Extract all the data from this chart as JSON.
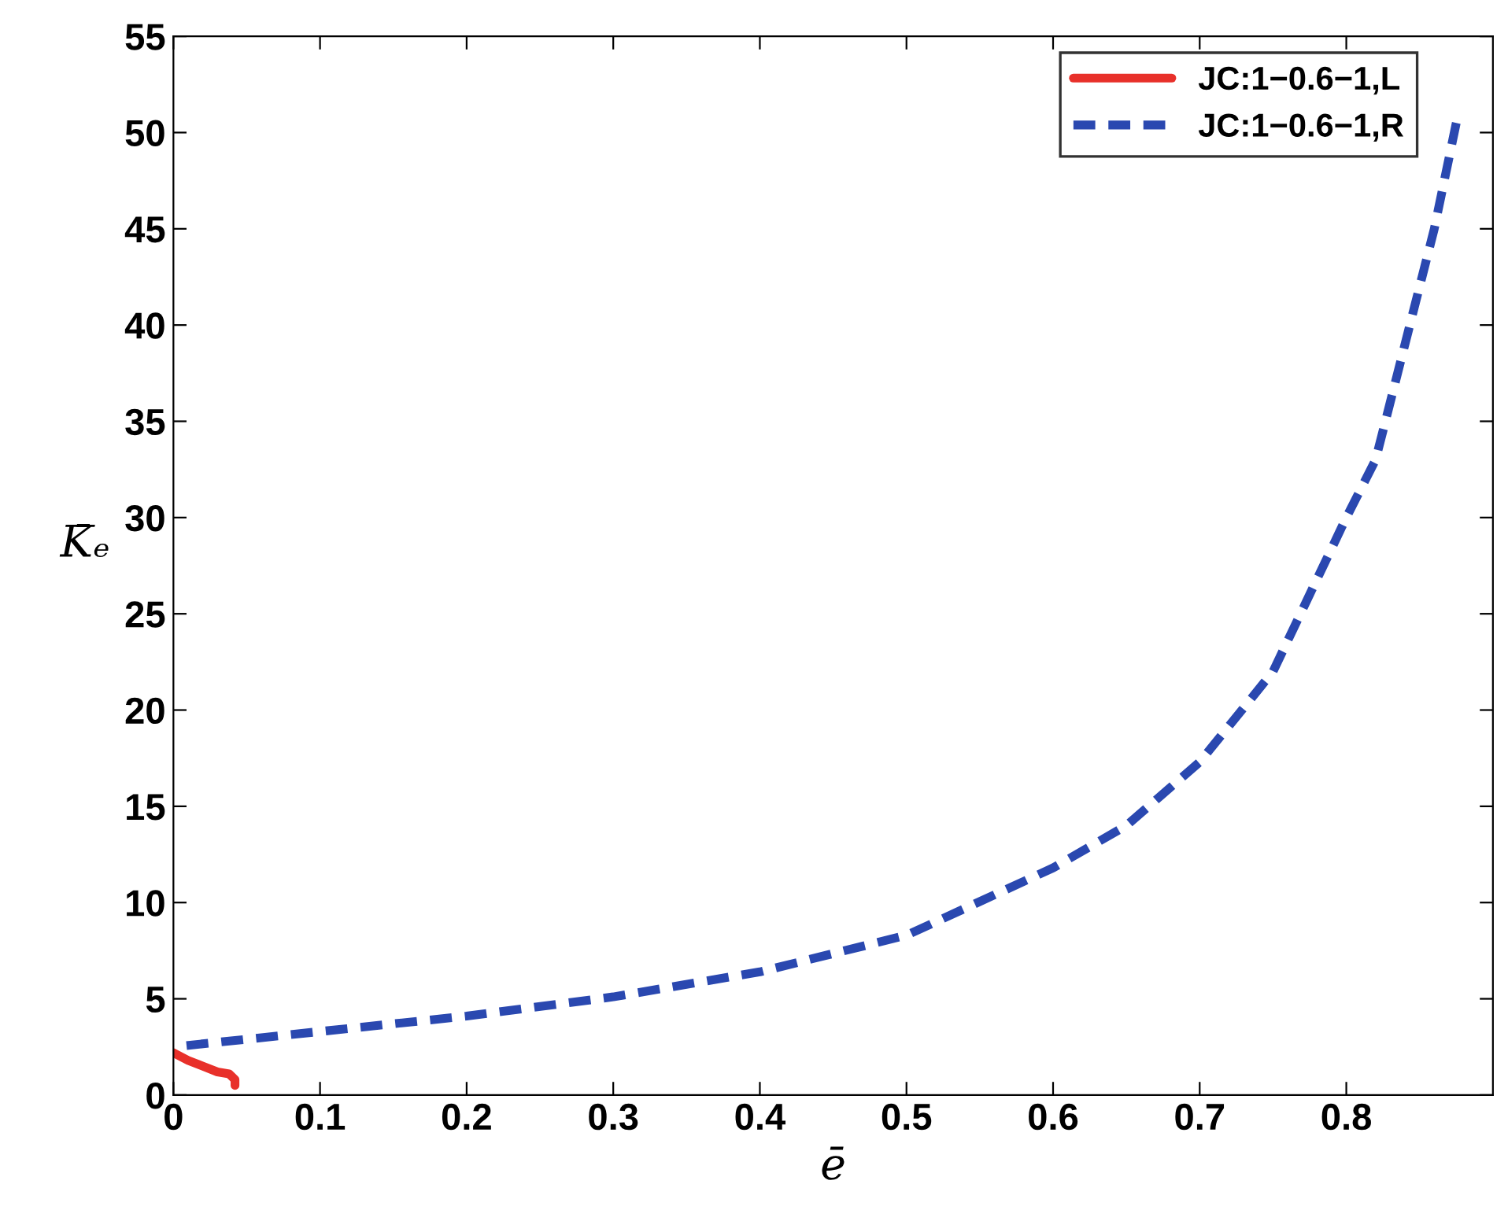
{
  "chart_data": {
    "type": "line",
    "xlabel": "ē",
    "ylabel": "K̄ₑ",
    "xlim": [
      0,
      0.9
    ],
    "ylim": [
      0,
      55
    ],
    "xticks": [
      0,
      0.1,
      0.2,
      0.3,
      0.4,
      0.5,
      0.6,
      0.7,
      0.8
    ],
    "yticks": [
      0,
      5,
      10,
      15,
      20,
      25,
      30,
      35,
      40,
      45,
      50,
      55
    ],
    "grid": false,
    "legend": "top right",
    "series": [
      {
        "name": "JC:1−0.6−1,L",
        "color": "#e8302a",
        "line_style": "solid",
        "x": [
          0,
          0.01,
          0.02,
          0.03,
          0.038,
          0.042,
          0.042
        ],
        "values": [
          2.2,
          1.8,
          1.5,
          1.2,
          1.1,
          0.8,
          0.5
        ]
      },
      {
        "name": "JC:1−0.6−1,R",
        "color": "#2a48b0",
        "line_style": "dashed",
        "x": [
          0,
          0.1,
          0.2,
          0.3,
          0.4,
          0.5,
          0.6,
          0.65,
          0.7,
          0.75,
          0.8,
          0.82,
          0.84,
          0.86,
          0.875
        ],
        "values": [
          2.5,
          3.3,
          4.1,
          5.1,
          6.4,
          8.3,
          11.8,
          14,
          17.3,
          22,
          30,
          33,
          39,
          45,
          50.5
        ]
      }
    ]
  }
}
